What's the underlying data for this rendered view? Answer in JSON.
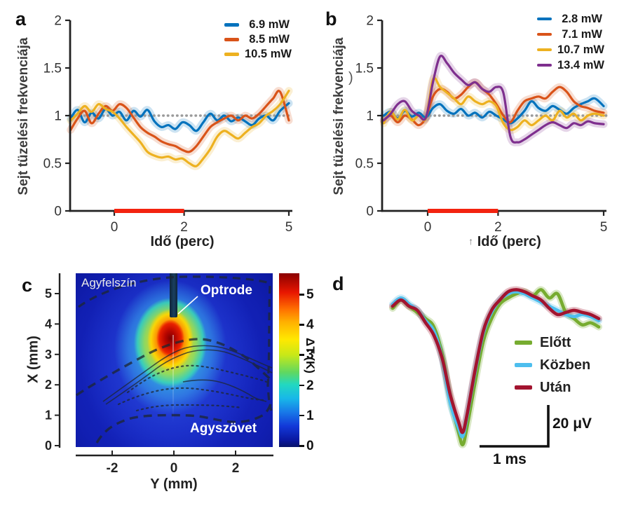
{
  "panels": {
    "a": "a",
    "b": "b",
    "c": "c",
    "d": "d"
  },
  "misc": {
    "b_xlabel_prefix": "↑",
    "b_axis_artifact": ")"
  },
  "colors": {
    "axis": "#222222",
    "stim_bar": "#F3230F",
    "reference_line": "#9a9a9a",
    "tick_text": "#333333"
  },
  "chart_data": [
    {
      "id": "a",
      "type": "line",
      "xlabel": "Idő (perc)",
      "ylabel": "Sejt tüzelési frekvenciája",
      "xlim": [
        -1.25,
        5
      ],
      "ylim": [
        0,
        2
      ],
      "xticks": [
        0,
        2,
        5
      ],
      "yticks": [
        0,
        0.5,
        1,
        1.5,
        2
      ],
      "reference_line_y": 1,
      "stim_bar_x": [
        0,
        2
      ],
      "legend_position": "top-right",
      "x": [
        -1.25,
        -1.05,
        -0.85,
        -0.65,
        -0.45,
        -0.25,
        -0.05,
        0.15,
        0.35,
        0.55,
        0.75,
        0.95,
        1.15,
        1.35,
        1.55,
        1.75,
        1.95,
        2.15,
        2.35,
        2.55,
        2.75,
        2.95,
        3.15,
        3.35,
        3.55,
        3.75,
        3.95,
        4.15,
        4.35,
        4.55,
        4.75,
        5.0
      ],
      "series": [
        {
          "name": "6.9 mW",
          "color": "#0072BD",
          "y": [
            0.97,
            1.06,
            0.93,
            1.03,
            0.97,
            1.07,
            1.0,
            1.04,
            0.95,
            1.05,
            0.99,
            1.06,
            0.94,
            0.88,
            0.9,
            0.86,
            0.93,
            0.9,
            0.84,
            0.93,
            1.02,
            0.95,
            1.0,
            0.94,
            0.98,
            0.94,
            0.9,
            0.97,
            1.0,
            0.95,
            1.05,
            1.13
          ]
        },
        {
          "name": "8.5 mW",
          "color": "#D95319",
          "y": [
            0.85,
            0.97,
            1.05,
            0.92,
            1.02,
            1.1,
            1.05,
            1.12,
            1.08,
            0.98,
            0.88,
            0.82,
            0.78,
            0.73,
            0.7,
            0.68,
            0.64,
            0.62,
            0.68,
            0.78,
            0.88,
            0.93,
            0.97,
            1.0,
            0.95,
            1.0,
            0.97,
            1.02,
            1.1,
            1.18,
            1.25,
            0.95
          ]
        },
        {
          "name": "10.5 mW",
          "color": "#EDB120",
          "y": [
            0.95,
            1.02,
            1.1,
            1.04,
            1.12,
            1.07,
            1.04,
            0.97,
            0.88,
            0.8,
            0.72,
            0.62,
            0.58,
            0.56,
            0.57,
            0.54,
            0.55,
            0.5,
            0.47,
            0.55,
            0.65,
            0.78,
            0.84,
            0.8,
            0.76,
            0.82,
            0.88,
            0.92,
            1.0,
            1.05,
            1.12,
            1.26
          ]
        }
      ]
    },
    {
      "id": "b",
      "type": "line",
      "xlabel": "Idő (perc)",
      "ylabel": "Sejt tüzelési frekvenciája",
      "xlim": [
        -1.25,
        5
      ],
      "ylim": [
        0,
        2
      ],
      "xticks": [
        0,
        2,
        5
      ],
      "yticks": [
        0,
        0.5,
        1,
        1.5,
        2
      ],
      "reference_line_y": 1,
      "stim_bar_x": [
        0,
        2
      ],
      "legend_position": "top-right",
      "x": [
        -1.25,
        -1.05,
        -0.85,
        -0.65,
        -0.45,
        -0.25,
        -0.05,
        0.15,
        0.35,
        0.55,
        0.75,
        0.95,
        1.15,
        1.35,
        1.55,
        1.75,
        1.95,
        2.15,
        2.35,
        2.55,
        2.75,
        2.95,
        3.15,
        3.35,
        3.55,
        3.75,
        3.95,
        4.15,
        4.35,
        4.55,
        4.75,
        5.0
      ],
      "series": [
        {
          "name": "2.8 mW",
          "color": "#0072BD",
          "y": [
            1.0,
            1.04,
            0.97,
            1.05,
            0.99,
            1.03,
            0.98,
            1.08,
            1.12,
            1.05,
            1.02,
            1.07,
            1.0,
            1.03,
            0.98,
            1.04,
            1.0,
            0.96,
            0.92,
            0.97,
            1.05,
            1.15,
            1.08,
            1.05,
            1.1,
            1.06,
            1.02,
            1.08,
            1.12,
            1.15,
            1.18,
            1.1
          ]
        },
        {
          "name": "7.1 mW",
          "color": "#D95319",
          "y": [
            0.95,
            1.0,
            0.93,
            1.0,
            0.96,
            0.9,
            0.98,
            1.2,
            1.28,
            1.25,
            1.18,
            1.22,
            1.3,
            1.35,
            1.28,
            1.22,
            1.12,
            1.0,
            0.93,
            1.05,
            1.15,
            1.18,
            1.2,
            1.18,
            1.25,
            1.3,
            1.25,
            1.15,
            1.1,
            1.08,
            1.05,
            1.03
          ]
        },
        {
          "name": "10.7 mW",
          "color": "#EDB120",
          "y": [
            0.92,
            1.04,
            0.96,
            1.06,
            0.95,
            1.0,
            0.97,
            1.38,
            1.3,
            1.24,
            1.18,
            1.12,
            1.2,
            1.15,
            1.12,
            1.15,
            1.1,
            0.92,
            0.85,
            0.88,
            0.95,
            0.9,
            0.95,
            1.0,
            0.95,
            1.05,
            0.98,
            1.02,
            0.95,
            1.0,
            1.02,
            1.0
          ]
        },
        {
          "name": "13.4 mW",
          "color": "#7E2F8E",
          "y": [
            0.95,
            1.02,
            1.12,
            1.15,
            1.05,
            1.0,
            0.98,
            1.35,
            1.62,
            1.55,
            1.45,
            1.38,
            1.32,
            1.35,
            1.28,
            1.25,
            1.3,
            1.24,
            0.78,
            0.72,
            0.75,
            0.8,
            0.85,
            0.9,
            0.93,
            0.9,
            0.87,
            0.92,
            0.9,
            0.94,
            0.92,
            0.91
          ]
        }
      ]
    },
    {
      "id": "c",
      "type": "heatmap",
      "xlabel": "Y (mm)",
      "ylabel": "X (mm)",
      "xlim": [
        -3.2,
        3.2
      ],
      "ylim": [
        0,
        5.7
      ],
      "xticks": [
        -2,
        0,
        2
      ],
      "yticks": [
        0,
        1,
        2,
        3,
        4,
        5
      ],
      "colorbar": {
        "label": "ΔT (K)",
        "ticks": [
          0,
          1,
          2,
          3,
          4,
          5
        ],
        "colormap": "jet"
      },
      "hotspot": {
        "y_mm": 0,
        "x_mm": 3.7,
        "peak_dT_K": 5.5
      },
      "annotations": {
        "surface": "Agyfelszín",
        "probe": "Optrode",
        "tissue": "Agyszövet"
      }
    },
    {
      "id": "d",
      "type": "line",
      "xlabel": "",
      "ylabel": "",
      "x_unit": "ms",
      "y_unit": "μV",
      "scalebars": {
        "vertical": "20 μV",
        "horizontal": "1 ms"
      },
      "x": [
        0,
        0.12,
        0.24,
        0.36,
        0.48,
        0.6,
        0.72,
        0.84,
        0.96,
        1.02,
        1.08,
        1.2,
        1.32,
        1.44,
        1.56,
        1.68,
        1.8,
        1.92,
        2.04,
        2.16,
        2.28,
        2.4,
        2.52,
        2.64,
        2.76,
        2.88,
        3.0
      ],
      "series": [
        {
          "name": "Előtt",
          "color": "#77AC30",
          "y": [
            0,
            4,
            1,
            -2,
            -5,
            -9,
            -22,
            -44,
            -60,
            -66,
            -58,
            -36,
            -16,
            -5,
            2,
            5,
            7,
            8,
            6,
            9,
            5,
            7,
            -2,
            -5,
            -8,
            -7,
            -9
          ]
        },
        {
          "name": "Közben",
          "color": "#4DBEEE",
          "y": [
            2,
            5,
            2,
            -1,
            -6,
            -11,
            -24,
            -46,
            -58,
            -62,
            -53,
            -31,
            -12,
            -2,
            4,
            7,
            8,
            7,
            5,
            3,
            1,
            -1,
            -3,
            -4,
            -3,
            -4,
            -6
          ]
        },
        {
          "name": "Után",
          "color": "#A2142F",
          "y": [
            1,
            4,
            1,
            -1,
            -7,
            -13,
            -24,
            -42,
            -55,
            -60,
            -52,
            -30,
            -11,
            -1,
            4,
            8,
            9,
            8,
            6,
            4,
            0,
            -3,
            -2,
            -1,
            -2,
            -3,
            -5
          ]
        }
      ]
    }
  ]
}
